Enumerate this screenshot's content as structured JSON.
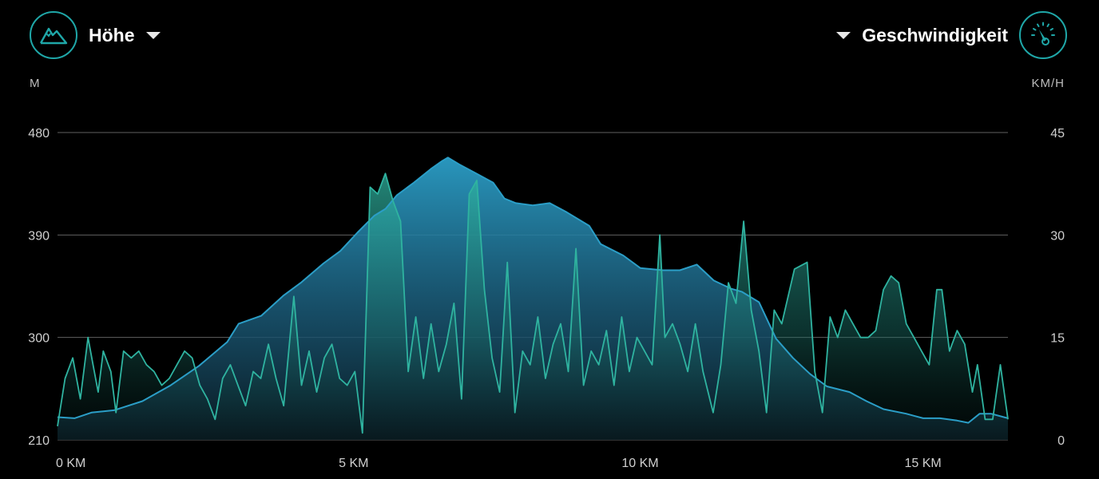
{
  "left_metric": {
    "label": "Höhe",
    "unit": "M",
    "icon": "mountain-icon"
  },
  "right_metric": {
    "label": "Geschwindigkeit",
    "unit": "KM/H",
    "icon": "speedometer-icon"
  },
  "colors": {
    "accent": "#1fa7a8",
    "elevation": "#2b9ec7",
    "speed": "#2fb3a0",
    "grid": "#8a8a8a",
    "background": "#000000"
  },
  "chart_data": {
    "type": "area",
    "xlabel": "",
    "ylabel": "",
    "xlim": [
      0,
      16.8
    ],
    "x_ticks": [
      {
        "value": 0,
        "label": "0 KM"
      },
      {
        "value": 5,
        "label": "5 KM"
      },
      {
        "value": 10,
        "label": "10 KM"
      },
      {
        "value": 15,
        "label": "15 KM"
      }
    ],
    "y_left": {
      "unit": "M",
      "ylim": [
        210,
        480
      ],
      "ticks": [
        480,
        390,
        300,
        210
      ]
    },
    "y_right": {
      "unit": "KM/H",
      "ylim": [
        0,
        45
      ],
      "ticks": [
        45,
        30,
        15,
        0
      ]
    },
    "grid": true,
    "series": [
      {
        "axis": "left",
        "points": [
          [
            0,
            230
          ],
          [
            0.3,
            229
          ],
          [
            0.6,
            234
          ],
          [
            1.0,
            236
          ],
          [
            1.5,
            244
          ],
          [
            2.0,
            258
          ],
          [
            2.5,
            275
          ],
          [
            3.0,
            296
          ],
          [
            3.2,
            312
          ],
          [
            3.6,
            319
          ],
          [
            4.0,
            337
          ],
          [
            4.3,
            348
          ],
          [
            4.7,
            365
          ],
          [
            5.0,
            376
          ],
          [
            5.3,
            392
          ],
          [
            5.6,
            407
          ],
          [
            5.8,
            413
          ],
          [
            6.0,
            425
          ],
          [
            6.3,
            436
          ],
          [
            6.6,
            448
          ],
          [
            6.8,
            455
          ],
          [
            6.9,
            458
          ],
          [
            7.1,
            452
          ],
          [
            7.4,
            444
          ],
          [
            7.7,
            436
          ],
          [
            7.9,
            422
          ],
          [
            8.1,
            418
          ],
          [
            8.4,
            416
          ],
          [
            8.7,
            418
          ],
          [
            9.0,
            410
          ],
          [
            9.4,
            398
          ],
          [
            9.6,
            382
          ],
          [
            10.0,
            372
          ],
          [
            10.3,
            361
          ],
          [
            10.7,
            359
          ],
          [
            11.0,
            359
          ],
          [
            11.3,
            364
          ],
          [
            11.6,
            350
          ],
          [
            11.9,
            343
          ],
          [
            12.1,
            340
          ],
          [
            12.4,
            331
          ],
          [
            12.7,
            299
          ],
          [
            13.0,
            282
          ],
          [
            13.3,
            268
          ],
          [
            13.6,
            257
          ],
          [
            14.0,
            252
          ],
          [
            14.3,
            244
          ],
          [
            14.6,
            237
          ],
          [
            15.0,
            233
          ],
          [
            15.3,
            229
          ],
          [
            15.6,
            229
          ],
          [
            15.9,
            227
          ],
          [
            16.1,
            225
          ],
          [
            16.3,
            233
          ],
          [
            16.5,
            233
          ],
          [
            16.8,
            229
          ]
        ]
      },
      {
        "axis": "right",
        "points": [
          [
            0,
            2
          ],
          [
            0.15,
            9
          ],
          [
            0.3,
            12
          ],
          [
            0.45,
            6
          ],
          [
            0.6,
            15
          ],
          [
            0.7,
            11
          ],
          [
            0.8,
            7
          ],
          [
            0.9,
            13
          ],
          [
            1.05,
            10
          ],
          [
            1.15,
            4
          ],
          [
            1.3,
            13
          ],
          [
            1.45,
            12
          ],
          [
            1.6,
            13
          ],
          [
            1.75,
            11
          ],
          [
            1.9,
            10
          ],
          [
            2.05,
            8
          ],
          [
            2.2,
            9
          ],
          [
            2.35,
            11
          ],
          [
            2.5,
            13
          ],
          [
            2.65,
            12
          ],
          [
            2.8,
            8
          ],
          [
            2.95,
            6
          ],
          [
            3.1,
            3
          ],
          [
            3.25,
            9
          ],
          [
            3.4,
            11
          ],
          [
            3.55,
            8
          ],
          [
            3.7,
            5
          ],
          [
            3.85,
            10
          ],
          [
            4.0,
            9
          ],
          [
            4.15,
            14
          ],
          [
            4.3,
            9
          ],
          [
            4.45,
            5
          ],
          [
            4.55,
            13
          ],
          [
            4.65,
            21
          ],
          [
            4.8,
            8
          ],
          [
            4.95,
            13
          ],
          [
            5.1,
            7
          ],
          [
            5.25,
            12
          ],
          [
            5.4,
            14
          ],
          [
            5.55,
            9
          ],
          [
            5.7,
            8
          ],
          [
            5.85,
            10
          ],
          [
            6.0,
            1
          ],
          [
            6.15,
            37
          ],
          [
            6.3,
            36
          ],
          [
            6.45,
            39
          ],
          [
            6.6,
            35
          ],
          [
            6.75,
            32
          ],
          [
            6.9,
            10
          ],
          [
            7.05,
            18
          ],
          [
            7.2,
            9
          ],
          [
            7.35,
            17
          ],
          [
            7.5,
            10
          ],
          [
            7.65,
            14
          ],
          [
            7.8,
            20
          ],
          [
            7.95,
            6
          ],
          [
            8.1,
            36
          ],
          [
            8.25,
            38
          ],
          [
            8.4,
            22
          ],
          [
            8.55,
            12
          ],
          [
            8.7,
            7
          ],
          [
            8.85,
            26
          ],
          [
            9.0,
            4
          ],
          [
            9.15,
            13
          ],
          [
            9.3,
            11
          ],
          [
            9.45,
            18
          ],
          [
            9.6,
            9
          ],
          [
            9.75,
            14
          ],
          [
            9.9,
            17
          ],
          [
            10.05,
            10
          ],
          [
            10.2,
            28
          ],
          [
            10.35,
            8
          ],
          [
            10.5,
            13
          ],
          [
            10.65,
            11
          ],
          [
            10.8,
            16
          ],
          [
            10.95,
            8
          ],
          [
            11.1,
            18
          ],
          [
            11.25,
            10
          ],
          [
            11.4,
            15
          ],
          [
            11.55,
            13
          ],
          [
            11.7,
            11
          ],
          [
            11.85,
            30
          ],
          [
            11.95,
            15
          ],
          [
            12.1,
            17
          ],
          [
            12.25,
            14
          ],
          [
            12.4,
            10
          ],
          [
            12.55,
            17
          ],
          [
            12.7,
            10
          ],
          [
            12.9,
            4
          ],
          [
            13.05,
            11
          ],
          [
            13.2,
            23
          ],
          [
            13.35,
            20
          ],
          [
            13.5,
            32
          ],
          [
            13.65,
            19
          ],
          [
            13.8,
            13
          ],
          [
            13.95,
            4
          ],
          [
            14.1,
            19
          ],
          [
            14.25,
            17
          ],
          [
            14.5,
            25
          ],
          [
            14.75,
            26
          ],
          [
            14.9,
            10
          ],
          [
            15.05,
            4
          ],
          [
            15.2,
            18
          ],
          [
            15.35,
            15
          ],
          [
            15.5,
            19
          ],
          [
            15.65,
            17
          ],
          [
            15.8,
            15
          ],
          [
            15.95,
            15
          ],
          [
            16.1,
            16
          ],
          [
            16.25,
            22
          ],
          [
            16.4,
            24
          ],
          [
            16.55,
            23
          ],
          [
            16.7,
            17
          ],
          [
            16.85,
            15
          ],
          [
            17.0,
            13
          ],
          [
            17.15,
            11
          ],
          [
            17.3,
            22
          ],
          [
            17.4,
            22
          ],
          [
            17.55,
            13
          ],
          [
            17.7,
            16
          ],
          [
            17.85,
            14
          ],
          [
            18.0,
            7
          ],
          [
            18.1,
            11
          ],
          [
            18.25,
            3
          ],
          [
            18.4,
            3
          ],
          [
            18.55,
            11
          ],
          [
            18.7,
            3
          ]
        ]
      }
    ]
  }
}
